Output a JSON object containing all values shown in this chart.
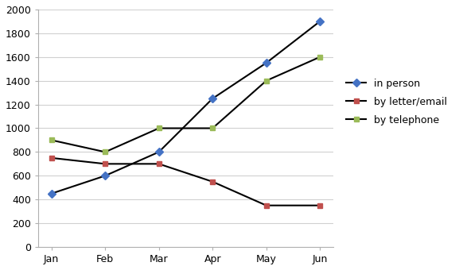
{
  "months": [
    "Jan",
    "Feb",
    "Mar",
    "Apr",
    "May",
    "Jun"
  ],
  "in_person": [
    450,
    600,
    800,
    1250,
    1550,
    1900
  ],
  "by_letter_email": [
    750,
    700,
    700,
    550,
    350,
    350
  ],
  "by_telephone": [
    900,
    800,
    1000,
    1000,
    1400,
    1600
  ],
  "line_color": "#000000",
  "marker_colors": {
    "in_person": "#4472c4",
    "by_letter_email": "#c0504d",
    "by_telephone": "#9bbb59"
  },
  "markers": {
    "in_person": "D",
    "by_letter_email": "s",
    "by_telephone": "s"
  },
  "legend_labels": [
    "in person",
    "by letter/email",
    "by telephone"
  ],
  "ylim": [
    0,
    2000
  ],
  "yticks": [
    0,
    200,
    400,
    600,
    800,
    1000,
    1200,
    1400,
    1600,
    1800,
    2000
  ],
  "plot_bg": "#ffffff",
  "outer_bg": "#ffffff",
  "grid_color": "#d0d0d0",
  "tick_fontsize": 9,
  "legend_fontsize": 9
}
